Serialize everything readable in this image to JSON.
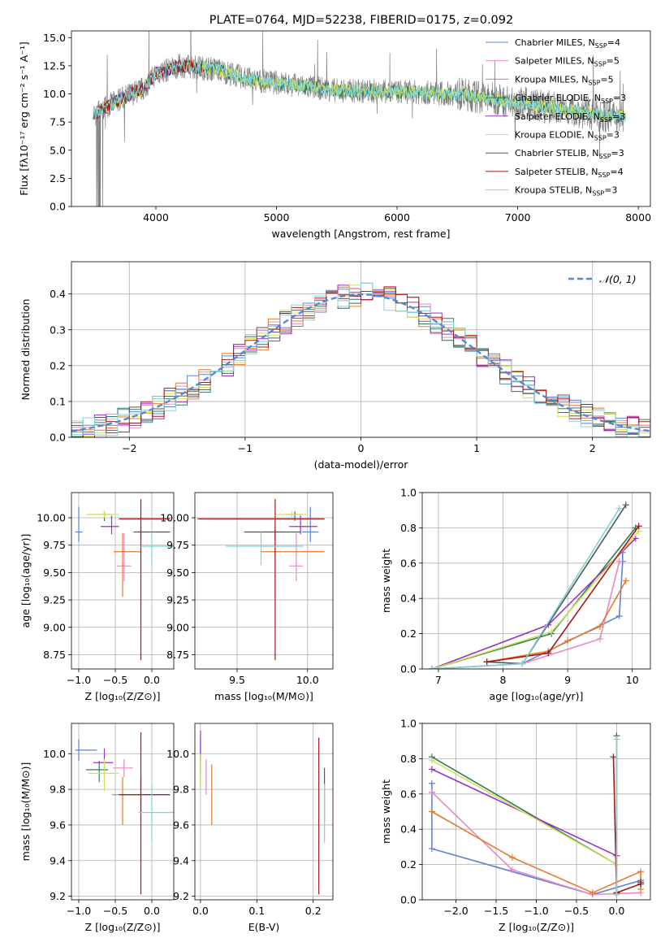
{
  "figure": {
    "title": "PLATE=0764, MJD=52238, FIBERID=0175, z=0.092"
  },
  "legend_entries": [
    {
      "label": "Chabrier MILES, N",
      "sub": "SSP",
      "suffix": "=4",
      "color": "#5b84d9"
    },
    {
      "label": "Salpeter MILES, N",
      "sub": "SSP",
      "suffix": "=5",
      "color": "#e78ac3"
    },
    {
      "label": "Kroupa MILES, N",
      "sub": "SSP",
      "suffix": "=5",
      "color": "#e8782a"
    },
    {
      "label": "Chabrier ELODIE, N",
      "sub": "SSP",
      "suffix": "=3",
      "color": "#2e7d5b"
    },
    {
      "label": "Salpeter ELODIE, N",
      "sub": "SSP",
      "suffix": "=3",
      "color": "#9a32c2"
    },
    {
      "label": "Kroupa ELODIE, N",
      "sub": "SSP",
      "suffix": "=3",
      "color": "#d4e157"
    },
    {
      "label": "Chabrier STELIB, N",
      "sub": "SSP",
      "suffix": "=3",
      "color": "#555555"
    },
    {
      "label": "Salpeter STELIB, N",
      "sub": "SSP",
      "suffix": "=4",
      "color": "#a51818"
    },
    {
      "label": "Kroupa STELIB, N",
      "sub": "SSP",
      "suffix": "=3",
      "color": "#7fd3d6"
    }
  ],
  "chart_data": [
    {
      "id": "spectrum",
      "type": "line",
      "xlabel": "wavelength [Angstrom, rest frame]",
      "ylabel": "Flux [fλ10⁻¹⁷ erg cm⁻² s⁻¹ A⁻¹]",
      "xlim": [
        3300,
        8100
      ],
      "ylim": [
        0,
        15.6
      ],
      "xticks": [
        "4000",
        "5000",
        "6000",
        "7000",
        "8000"
      ],
      "yticks": [
        "0.0",
        "2.5",
        "5.0",
        "7.5",
        "10.0",
        "12.5",
        "15.0"
      ],
      "grid": false,
      "legend": "top-right",
      "data_continuum": [
        [
          3500,
          8.3
        ],
        [
          3700,
          9.5
        ],
        [
          3900,
          10.5
        ],
        [
          4000,
          11.8
        ],
        [
          4200,
          12.5
        ],
        [
          4500,
          12.2
        ],
        [
          4800,
          11.2
        ],
        [
          5000,
          11.0
        ],
        [
          5200,
          10.7
        ],
        [
          5500,
          10.3
        ],
        [
          6000,
          10.2
        ],
        [
          6500,
          10.0
        ],
        [
          7000,
          9.2
        ],
        [
          7400,
          8.6
        ],
        [
          7700,
          8.1
        ],
        [
          7900,
          8.0
        ]
      ]
    },
    {
      "id": "residuals",
      "type": "bar",
      "xlabel": "(data-model)/error",
      "ylabel": "Normed distribution",
      "xlim": [
        -2.5,
        2.5
      ],
      "ylim": [
        0,
        0.49
      ],
      "xticks": [
        "−2",
        "−1",
        "0",
        "1",
        "2"
      ],
      "yticks": [
        "0.0",
        "0.1",
        "0.2",
        "0.3",
        "0.4"
      ],
      "grid": true,
      "legend": "top-right",
      "reference": {
        "name": "𝒩(0, 1)",
        "mean": 0,
        "sigma": 1,
        "color": "#5b84d9"
      }
    },
    {
      "id": "age_vs_Z",
      "type": "scatter",
      "xlabel": "Z [log₁₀(Z/Z⊙)]",
      "ylabel": "age  [log₁₀(age/yr)]",
      "xlim": [
        -1.1,
        0.3
      ],
      "ylim": [
        8.62,
        10.23
      ],
      "xticks": [
        "−1.0",
        "−0.5",
        "0.0"
      ],
      "yticks": [
        "8.75",
        "9.00",
        "9.25",
        "9.50",
        "9.75",
        "10.00"
      ],
      "grid": true,
      "points": [
        {
          "model": "Chabrier MILES",
          "x": -1.0,
          "y": 9.87,
          "xerr": [
            0.05,
            0.05
          ],
          "yerr": [
            0.09,
            0.23
          ]
        },
        {
          "model": "Salpeter MILES",
          "x": -0.38,
          "y": 9.56,
          "xerr": [
            0.1,
            0.1
          ],
          "yerr": [
            0.14,
            0.3
          ]
        },
        {
          "model": "Kroupa MILES",
          "x": -0.4,
          "y": 9.69,
          "xerr": [
            0.12,
            0.25
          ],
          "yerr": [
            0.41,
            0.17
          ]
        },
        {
          "model": "Chabrier ELODIE",
          "x": -0.65,
          "y": 10.03,
          "xerr": [
            0.2,
            0.1
          ],
          "yerr": [
            0.06,
            0.03
          ]
        },
        {
          "model": "Salpeter ELODIE",
          "x": -0.55,
          "y": 9.92,
          "xerr": [
            0.15,
            0.1
          ],
          "yerr": [
            0.07,
            0.1
          ]
        },
        {
          "model": "Kroupa ELODIE",
          "x": -0.65,
          "y": 10.03,
          "xerr": [
            0.25,
            0.2
          ],
          "yerr": [
            0.03,
            0.03
          ]
        },
        {
          "model": "Chabrier STELIB",
          "x": -0.15,
          "y": 9.87,
          "xerr": [
            0.1,
            0.4
          ],
          "yerr": [
            0.07,
            0.05
          ]
        },
        {
          "model": "Salpeter STELIB",
          "x": -0.15,
          "y": 9.99,
          "xerr": [
            0.3,
            0.4
          ],
          "yerr": [
            1.29,
            0.18
          ]
        },
        {
          "model": "Kroupa STELIB",
          "x": 0.0,
          "y": 9.74,
          "xerr": [
            0.15,
            0.3
          ],
          "yerr": [
            0.17,
            0.13
          ]
        }
      ]
    },
    {
      "id": "age_vs_mass",
      "type": "scatter",
      "xlabel": "mass [log₁₀(M/M⊙)]",
      "ylabel": "",
      "xlim": [
        9.2,
        10.18
      ],
      "ylim": [
        8.62,
        10.23
      ],
      "xticks": [
        "9.5",
        "10.0"
      ],
      "yticks": [
        "8.75",
        "9.00",
        "9.25",
        "9.50",
        "9.75",
        "10.00"
      ],
      "grid": true,
      "points": [
        {
          "model": "Chabrier MILES",
          "x": 10.02,
          "y": 9.87,
          "xerr": [
            0.06,
            0.06
          ],
          "yerr": [
            0.09,
            0.23
          ]
        },
        {
          "model": "Salpeter MILES",
          "x": 9.92,
          "y": 9.56,
          "xerr": [
            0.05,
            0.05
          ],
          "yerr": [
            0.14,
            0.3
          ]
        },
        {
          "model": "Kroupa MILES",
          "x": 9.77,
          "y": 9.69,
          "xerr": [
            0.1,
            0.35
          ],
          "yerr": [
            0.41,
            0.17
          ]
        },
        {
          "model": "Chabrier ELODIE",
          "x": 9.91,
          "y": 10.03,
          "xerr": [
            0.07,
            0.05
          ],
          "yerr": [
            0.06,
            0.03
          ]
        },
        {
          "model": "Salpeter ELODIE",
          "x": 9.95,
          "y": 9.92,
          "xerr": [
            0.08,
            0.12
          ],
          "yerr": [
            0.07,
            0.1
          ]
        },
        {
          "model": "Kroupa ELODIE",
          "x": 9.89,
          "y": 10.03,
          "xerr": [
            0.12,
            0.1
          ],
          "yerr": [
            0.03,
            0.03
          ]
        },
        {
          "model": "Chabrier STELIB",
          "x": 9.77,
          "y": 9.87,
          "xerr": [
            0.22,
            0.18
          ],
          "yerr": [
            0.07,
            0.05
          ]
        },
        {
          "model": "Salpeter STELIB",
          "x": 9.77,
          "y": 9.99,
          "xerr": [
            0.55,
            0.35
          ],
          "yerr": [
            1.29,
            0.18
          ]
        },
        {
          "model": "Kroupa STELIB",
          "x": 9.67,
          "y": 9.74,
          "xerr": [
            0.25,
            0.3
          ],
          "yerr": [
            0.17,
            0.13
          ]
        }
      ]
    },
    {
      "id": "mass_weight_vs_age",
      "type": "line",
      "xlabel": "age  [log₁₀(age/yr)]",
      "ylabel": "mass weight",
      "xlim": [
        6.75,
        10.28
      ],
      "ylim": [
        0,
        1.0
      ],
      "xticks": [
        "7",
        "8",
        "9",
        "10"
      ],
      "yticks": [
        "0.0",
        "0.2",
        "0.4",
        "0.6",
        "0.8",
        "1.0"
      ],
      "grid": true,
      "series": [
        {
          "model": "Chabrier MILES",
          "x": [
            6.9,
            8.3,
            9.8,
            9.85,
            9.85
          ],
          "y": [
            0.0,
            0.03,
            0.3,
            0.61,
            0.66
          ]
        },
        {
          "model": "Salpeter MILES",
          "x": [
            6.9,
            8.3,
            9.5,
            9.8
          ],
          "y": [
            0.0,
            0.03,
            0.17,
            0.61
          ]
        },
        {
          "model": "Kroupa MILES",
          "x": [
            7.75,
            8.7,
            9.0,
            9.5,
            9.9
          ],
          "y": [
            0.04,
            0.1,
            0.16,
            0.24,
            0.5
          ]
        },
        {
          "model": "Chabrier ELODIE",
          "x": [
            6.9,
            8.75,
            10.05
          ],
          "y": [
            0.0,
            0.2,
            0.8
          ]
        },
        {
          "model": "Salpeter ELODIE",
          "x": [
            6.9,
            8.7,
            10.05
          ],
          "y": [
            0.0,
            0.25,
            0.74
          ]
        },
        {
          "model": "Kroupa ELODIE",
          "x": [
            6.9,
            8.75,
            10.1
          ],
          "y": [
            0.0,
            0.21,
            0.78
          ]
        },
        {
          "model": "Chabrier STELIB",
          "x": [
            7.75,
            8.3,
            9.9
          ],
          "y": [
            0.04,
            0.03,
            0.93
          ]
        },
        {
          "model": "Salpeter STELIB",
          "x": [
            7.75,
            8.7,
            10.1
          ],
          "y": [
            0.04,
            0.09,
            0.81
          ]
        },
        {
          "model": "Kroupa STELIB",
          "x": [
            6.9,
            8.3,
            9.8
          ],
          "y": [
            0.0,
            0.03,
            0.91
          ]
        }
      ]
    },
    {
      "id": "mass_vs_Z",
      "type": "scatter",
      "xlabel": "Z [log₁₀(Z/Z⊙)]",
      "ylabel": "mass [log₁₀(M/M⊙)]",
      "xlim": [
        -1.1,
        0.3
      ],
      "ylim": [
        9.18,
        10.17
      ],
      "xticks": [
        "−1.0",
        "−0.5",
        "0.0"
      ],
      "yticks": [
        "9.2",
        "9.4",
        "9.6",
        "9.8",
        "10.0"
      ],
      "grid": true,
      "points": [
        {
          "model": "Chabrier MILES",
          "x": -1.0,
          "y": 10.02,
          "xerr": [
            0.05,
            0.25
          ],
          "yerr": [
            0.06,
            0.06
          ]
        },
        {
          "model": "Salpeter MILES",
          "x": -0.38,
          "y": 9.92,
          "xerr": [
            0.15,
            0.12
          ],
          "yerr": [
            0.05,
            0.05
          ]
        },
        {
          "model": "Kroupa MILES",
          "x": -0.4,
          "y": 9.77,
          "xerr": [
            0.15,
            0.25
          ],
          "yerr": [
            0.17,
            0.1
          ]
        },
        {
          "model": "Chabrier ELODIE",
          "x": -0.72,
          "y": 9.91,
          "xerr": [
            0.18,
            0.12
          ],
          "yerr": [
            0.07,
            0.05
          ]
        },
        {
          "model": "Salpeter ELODIE",
          "x": -0.65,
          "y": 9.95,
          "xerr": [
            0.15,
            0.12
          ],
          "yerr": [
            0.08,
            0.08
          ]
        },
        {
          "model": "Kroupa ELODIE",
          "x": -0.65,
          "y": 9.89,
          "xerr": [
            0.22,
            0.2
          ],
          "yerr": [
            0.1,
            0.08
          ]
        },
        {
          "model": "Chabrier STELIB",
          "x": -0.15,
          "y": 9.77,
          "xerr": [
            0.3,
            0.4
          ],
          "yerr": [
            0.1,
            0.1
          ]
        },
        {
          "model": "Salpeter STELIB",
          "x": -0.15,
          "y": 9.77,
          "xerr": [
            0.3,
            0.4
          ],
          "yerr": [
            0.56,
            0.35
          ]
        },
        {
          "model": "Kroupa STELIB",
          "x": 0.0,
          "y": 9.67,
          "xerr": [
            0.18,
            0.3
          ],
          "yerr": [
            0.17,
            0.16
          ]
        }
      ]
    },
    {
      "id": "mass_vs_EBV",
      "type": "scatter",
      "xlabel": "E(B-V)",
      "ylabel": "",
      "xlim": [
        -0.01,
        0.235
      ],
      "ylim": [
        9.18,
        10.17
      ],
      "xticks": [
        "0.0",
        "0.1",
        "0.2"
      ],
      "yticks": [
        "9.2",
        "9.4",
        "9.6",
        "9.8",
        "10.0"
      ],
      "grid": true,
      "points": [
        {
          "model": "Chabrier MILES",
          "x": 0.0,
          "y": 10.02,
          "xerr": [
            0,
            0
          ],
          "yerr": [
            0.06,
            0.06
          ]
        },
        {
          "model": "Salpeter MILES",
          "x": 0.01,
          "y": 9.92,
          "xerr": [
            0,
            0
          ],
          "yerr": [
            0.15,
            0.05
          ]
        },
        {
          "model": "Kroupa MILES",
          "x": 0.02,
          "y": 9.77,
          "xerr": [
            0,
            0
          ],
          "yerr": [
            0.17,
            0.17
          ]
        },
        {
          "model": "Chabrier ELODIE",
          "x": 0.0,
          "y": 9.91,
          "xerr": [
            0,
            0
          ],
          "yerr": [
            0.1,
            0.1
          ]
        },
        {
          "model": "Salpeter ELODIE",
          "x": 0.0,
          "y": 9.98,
          "xerr": [
            0,
            0
          ],
          "yerr": [
            0.1,
            0.15
          ]
        },
        {
          "model": "Kroupa ELODIE",
          "x": 0.0,
          "y": 9.9,
          "xerr": [
            0,
            0
          ],
          "yerr": [
            0.1,
            0.1
          ]
        },
        {
          "model": "Chabrier STELIB",
          "x": 0.22,
          "y": 9.77,
          "xerr": [
            0,
            0
          ],
          "yerr": [
            0.15,
            0.15
          ]
        },
        {
          "model": "Salpeter STELIB",
          "x": 0.21,
          "y": 9.77,
          "xerr": [
            0,
            0
          ],
          "yerr": [
            0.56,
            0.32
          ]
        },
        {
          "model": "Kroupa STELIB",
          "x": 0.22,
          "y": 9.67,
          "xerr": [
            0,
            0
          ],
          "yerr": [
            0.17,
            0.16
          ]
        }
      ]
    },
    {
      "id": "mass_weight_vs_Z",
      "type": "line",
      "xlabel": "Z [log₁₀(Z/Z⊙)]",
      "ylabel": "mass weight",
      "xlim": [
        -2.42,
        0.42
      ],
      "ylim": [
        0,
        1.0
      ],
      "xticks": [
        "−2.0",
        "−1.5",
        "−1.0",
        "−0.5",
        "0.0"
      ],
      "yticks": [
        "0.0",
        "0.2",
        "0.4",
        "0.6",
        "0.8",
        "1.0"
      ],
      "grid": true,
      "series": [
        {
          "model": "Chabrier MILES",
          "x": [
            -2.3,
            -2.3,
            -2.3,
            -0.3,
            0.3
          ],
          "y": [
            0.66,
            0.61,
            0.29,
            0.03,
            0.11
          ]
        },
        {
          "model": "Salpeter MILES",
          "x": [
            -2.3,
            -1.3,
            -0.3,
            0.3
          ],
          "y": [
            0.61,
            0.17,
            0.03,
            0.04
          ]
        },
        {
          "model": "Kroupa MILES",
          "x": [
            -2.3,
            -1.3,
            -0.3,
            0.3,
            0.3
          ],
          "y": [
            0.5,
            0.24,
            0.04,
            0.16,
            0.06
          ]
        },
        {
          "model": "Chabrier ELODIE",
          "x": [
            -2.3,
            0.0
          ],
          "y": [
            0.81,
            0.2
          ]
        },
        {
          "model": "Salpeter ELODIE",
          "x": [
            -2.3,
            0.0
          ],
          "y": [
            0.74,
            0.25
          ]
        },
        {
          "model": "Kroupa ELODIE",
          "x": [
            -2.3,
            0.0
          ],
          "y": [
            0.79,
            0.2
          ]
        },
        {
          "model": "Chabrier STELIB",
          "x": [
            0.0,
            0.0,
            0.0
          ],
          "y": [
            0.93,
            0.04,
            0.03
          ]
        },
        {
          "model": "Salpeter STELIB",
          "x": [
            -0.04,
            0.0,
            0.3,
            0.3
          ],
          "y": [
            0.81,
            0.04,
            0.09,
            0.1
          ]
        },
        {
          "model": "Kroupa STELIB",
          "x": [
            0.0,
            0.0,
            0.0
          ],
          "y": [
            0.91,
            0.03,
            0.03
          ]
        }
      ]
    }
  ]
}
